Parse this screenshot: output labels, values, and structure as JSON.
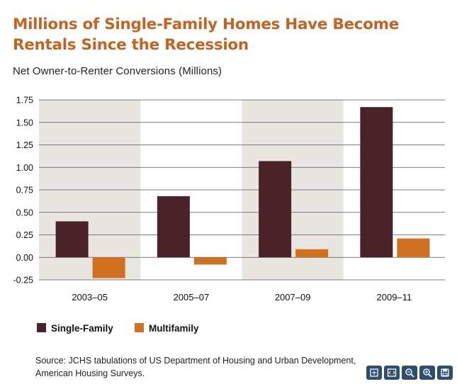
{
  "title_line1": "Millions of Single-Family Homes Have Become",
  "title_line2": "Rentals Since the Recession",
  "chart_data": {
    "type": "bar",
    "title": "Millions of Single-Family Homes Have Become Rentals Since the Recession",
    "ylabel": "Net Owner-to-Renter Conversions (Millions)",
    "xlabel": "",
    "categories": [
      "2003–05",
      "2005–07",
      "2007–09",
      "2009–11"
    ],
    "series": [
      {
        "name": "Single-Family",
        "values": [
          0.4,
          0.68,
          1.07,
          1.67
        ],
        "color": "#4a2229"
      },
      {
        "name": "Multifamily",
        "values": [
          -0.23,
          -0.08,
          0.09,
          0.21
        ],
        "color": "#d1711f"
      }
    ],
    "ylim": [
      -0.25,
      1.75
    ],
    "yticks": [
      -0.25,
      0.0,
      0.25,
      0.5,
      0.75,
      1.0,
      1.25,
      1.5,
      1.75
    ],
    "ytick_labels": [
      "-0.25",
      "0.00",
      "0.25",
      "0.50",
      "0.75",
      "1.00",
      "1.25",
      "1.50",
      "1.75"
    ],
    "grid": true,
    "alternate_shading": "#e9e5e0",
    "legend": "bottom-left"
  },
  "source": "Source: JCHS tabulations of US Department of Housing and Urban Development, American Housing Surveys.",
  "toolbar": [
    {
      "name": "fullscreen-icon"
    },
    {
      "name": "fit-width-icon"
    },
    {
      "name": "zoom-out-icon"
    },
    {
      "name": "zoom-in-icon"
    },
    {
      "name": "save-icon"
    }
  ]
}
